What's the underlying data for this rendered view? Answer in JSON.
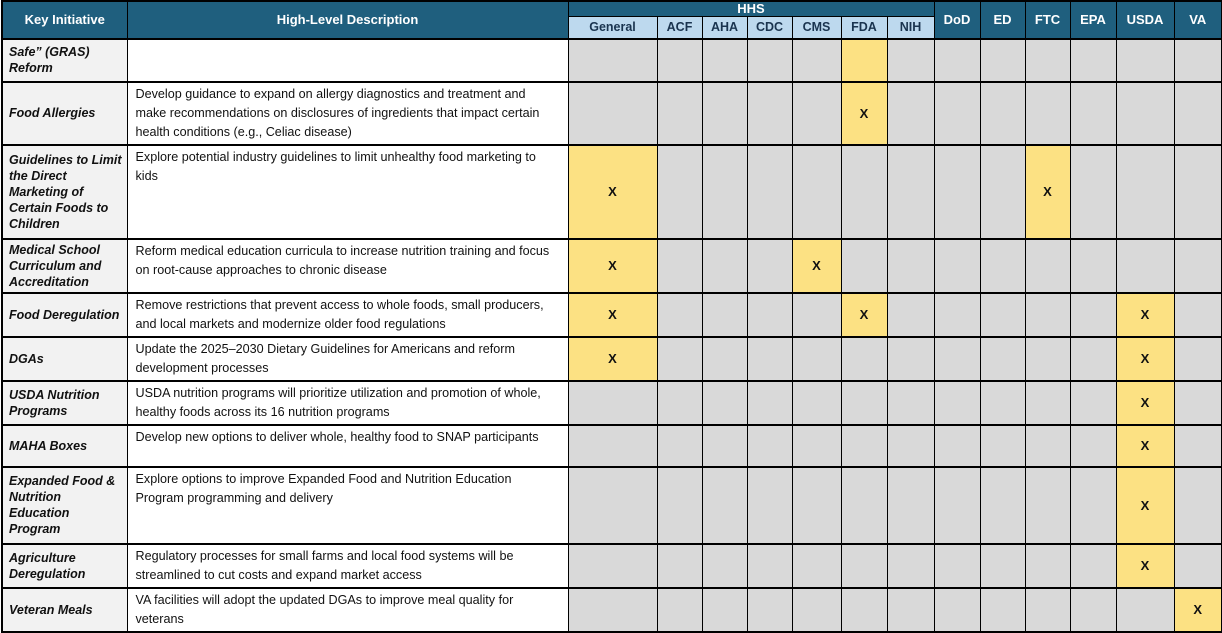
{
  "header": {
    "key_initiative": "Key Initiative",
    "description": "High-Level Description",
    "hhs_group": "HHS",
    "hhs_sub": [
      "General",
      "ACF",
      "AHA",
      "CDC",
      "CMS",
      "FDA",
      "NIH"
    ],
    "agencies": [
      "DoD",
      "ED",
      "FTC",
      "EPA",
      "USDA",
      "VA"
    ]
  },
  "x_mark": "X",
  "agency_keys": [
    "general",
    "acf",
    "aha",
    "cdc",
    "cms",
    "fda",
    "nih",
    "dod",
    "ed",
    "ftc",
    "epa",
    "usda",
    "va"
  ],
  "rows": [
    {
      "initiative": "Safe” (GRAS) Reform",
      "description": "",
      "marks": [
        "",
        "",
        "",
        "",
        "",
        "hl",
        "",
        "",
        "",
        "",
        "",
        "",
        ""
      ]
    },
    {
      "initiative": "Food Allergies",
      "description": "Develop guidance to expand on allergy diagnostics and treatment and make recommendations on disclosures of ingredients that impact certain health conditions (e.g., Celiac disease)",
      "marks": [
        "",
        "",
        "",
        "",
        "",
        "x",
        "",
        "",
        "",
        "",
        "",
        "",
        ""
      ]
    },
    {
      "initiative": "Guidelines to Limit the Direct Marketing of Certain Foods to Children",
      "description": "Explore potential industry guidelines to limit unhealthy food marketing to kids",
      "marks": [
        "x",
        "",
        "",
        "",
        "",
        "",
        "",
        "",
        "",
        "x",
        "",
        "",
        ""
      ]
    },
    {
      "initiative": "Medical School Curriculum and Accreditation",
      "description": "Reform medical education curricula to increase nutrition training and focus on root-cause approaches to chronic disease",
      "marks": [
        "x",
        "",
        "",
        "",
        "x",
        "",
        "",
        "",
        "",
        "",
        "",
        "",
        ""
      ]
    },
    {
      "initiative": "Food Deregulation",
      "description": "Remove restrictions that prevent access to whole foods, small producers, and local markets and modernize older food regulations",
      "marks": [
        "x",
        "",
        "",
        "",
        "",
        "x",
        "",
        "",
        "",
        "",
        "",
        "x",
        ""
      ]
    },
    {
      "initiative": "DGAs",
      "description": "Update the 2025–2030 Dietary Guidelines for Americans and reform development processes",
      "marks": [
        "x",
        "",
        "",
        "",
        "",
        "",
        "",
        "",
        "",
        "",
        "",
        "x",
        ""
      ]
    },
    {
      "initiative": "USDA Nutrition Programs",
      "description": "USDA nutrition programs will prioritize utilization and promotion of whole, healthy foods across its 16 nutrition programs",
      "marks": [
        "",
        "",
        "",
        "",
        "",
        "",
        "",
        "",
        "",
        "",
        "",
        "x",
        ""
      ]
    },
    {
      "initiative": "MAHA Boxes",
      "description": "Develop new options to deliver whole, healthy food to SNAP participants",
      "marks": [
        "",
        "",
        "",
        "",
        "",
        "",
        "",
        "",
        "",
        "",
        "",
        "x",
        ""
      ]
    },
    {
      "initiative": "Expanded Food & Nutrition Education Program",
      "description": "Explore options to improve Expanded Food and Nutrition Education Program programming and delivery",
      "marks": [
        "",
        "",
        "",
        "",
        "",
        "",
        "",
        "",
        "",
        "",
        "",
        "x",
        ""
      ]
    },
    {
      "initiative": "Agriculture Deregulation",
      "description": "Regulatory processes for small farms and local food systems will be streamlined to cut costs and expand market access",
      "marks": [
        "",
        "",
        "",
        "",
        "",
        "",
        "",
        "",
        "",
        "",
        "",
        "x",
        ""
      ]
    },
    {
      "initiative": "Veteran Meals",
      "description": "VA facilities will adopt the updated DGAs to improve meal quality for veterans",
      "marks": [
        "",
        "",
        "",
        "",
        "",
        "",
        "",
        "",
        "",
        "",
        "",
        "",
        "x"
      ]
    }
  ],
  "colors": {
    "header_teal": "#1F5F7E",
    "subheader_blue": "#BDD9EE",
    "cell_gray": "#D9D9D9",
    "highlight_yellow": "#FCE183",
    "initiative_bg": "#F2F2F2",
    "border_black": "#000000"
  }
}
